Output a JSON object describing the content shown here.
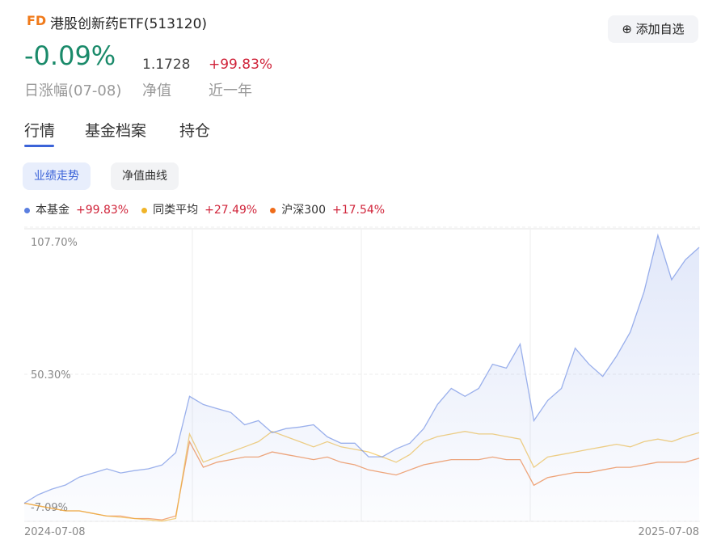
{
  "header": {
    "logo": "FD",
    "title": "港股创新药ETF(513120)",
    "watch_button": "添加自选",
    "daily_change": "-0.09%",
    "daily_change_label": "日涨幅(07-08)",
    "nav": "1.1728",
    "nav_label": "净值",
    "period_return": "+99.83%",
    "period_label": "近一年"
  },
  "tabs": [
    "行情",
    "基金档案",
    "持仓"
  ],
  "chart_buttons": [
    "业绩走势",
    "净值曲线"
  ],
  "chart_data": {
    "type": "line",
    "x": [
      "2024-07-08",
      null,
      null,
      null,
      null,
      null,
      null,
      null,
      null,
      null,
      null,
      null,
      null,
      null,
      null,
      null,
      null,
      null,
      null,
      null,
      null,
      null,
      null,
      null,
      null,
      null,
      null,
      null,
      null,
      null,
      null,
      null,
      null,
      null,
      null,
      null,
      null,
      null,
      null,
      null,
      null,
      null,
      null,
      null,
      null,
      null,
      null,
      null,
      null,
      "2025-07-08"
    ],
    "ylim": [
      -7.09,
      107.7
    ],
    "yticks": [
      {
        "value": 107.7,
        "label": "107.70%"
      },
      {
        "value": 50.3,
        "label": "50.30%"
      },
      {
        "value": -7.09,
        "label": "-7.09%"
      }
    ],
    "grid": true,
    "series": [
      {
        "name": "本基金",
        "color": "#5b7fe0",
        "area": true,
        "values": [
          0,
          3.3,
          5.5,
          7.1,
          10.2,
          11.8,
          13.4,
          11.8,
          12.7,
          13.4,
          14.9,
          19.7,
          41.7,
          38.5,
          36.9,
          35.4,
          30.6,
          32.2,
          27.5,
          29.1,
          29.7,
          30.6,
          25.9,
          23.4,
          23.4,
          18.1,
          18.1,
          21.2,
          23.4,
          29.1,
          38.5,
          44.8,
          41.7,
          44.8,
          54.2,
          52.7,
          62.1,
          32.2,
          40.1,
          44.8,
          60.5,
          54.2,
          49.5,
          57.4,
          66.8,
          82.5,
          104.5,
          87.2,
          95.0,
          99.83
        ],
        "value_labels": [
          null,
          null,
          null,
          null,
          null,
          null,
          null,
          null,
          null,
          null,
          null,
          null,
          null,
          null,
          null,
          null,
          null,
          null,
          null,
          null,
          null,
          null,
          null,
          null,
          null,
          null,
          null,
          null,
          null,
          null,
          null,
          null,
          null,
          null,
          null,
          null,
          null,
          null,
          null,
          null,
          null,
          null,
          null,
          null,
          null,
          null,
          null,
          null,
          null,
          "+99.83%"
        ]
      },
      {
        "name": "同类平均",
        "color": "#f0b429",
        "values": [
          0,
          -1,
          -2,
          -3,
          -3,
          -4,
          -5,
          -5.5,
          -6,
          -6.5,
          -7,
          -6,
          27,
          16,
          18,
          20,
          22,
          24,
          28,
          26,
          24,
          22,
          24,
          22,
          21,
          20,
          18,
          16,
          19,
          24,
          26,
          27,
          28,
          27,
          27,
          26,
          25,
          14,
          18,
          19,
          20,
          21,
          22,
          23,
          22,
          24,
          25,
          24,
          26,
          27.49
        ],
        "value_labels": [
          null,
          null,
          null,
          null,
          null,
          null,
          null,
          null,
          null,
          null,
          null,
          null,
          null,
          null,
          null,
          null,
          null,
          null,
          null,
          null,
          null,
          null,
          null,
          null,
          null,
          null,
          null,
          null,
          null,
          null,
          null,
          null,
          null,
          null,
          null,
          null,
          null,
          null,
          null,
          null,
          null,
          null,
          null,
          null,
          null,
          null,
          null,
          null,
          null,
          "+27.49%"
        ]
      },
      {
        "name": "沪深300",
        "color": "#ef6c1a",
        "values": [
          0,
          -1,
          -2,
          -3,
          -3,
          -4,
          -5,
          -5,
          -6,
          -6,
          -6.5,
          -5,
          24,
          14,
          16,
          17,
          18,
          18,
          20,
          19,
          18,
          17,
          18,
          16,
          15,
          13,
          12,
          11,
          13,
          15,
          16,
          17,
          17,
          17,
          18,
          17,
          17,
          7,
          10,
          11,
          12,
          12,
          13,
          14,
          14,
          15,
          16,
          16,
          16,
          17.54
        ],
        "value_labels": [
          null,
          null,
          null,
          null,
          null,
          null,
          null,
          null,
          null,
          null,
          null,
          null,
          null,
          null,
          null,
          null,
          null,
          null,
          null,
          null,
          null,
          null,
          null,
          null,
          null,
          null,
          null,
          null,
          null,
          null,
          null,
          null,
          null,
          null,
          null,
          null,
          null,
          null,
          null,
          null,
          null,
          null,
          null,
          null,
          null,
          null,
          null,
          null,
          null,
          "+17.54%"
        ]
      }
    ]
  }
}
